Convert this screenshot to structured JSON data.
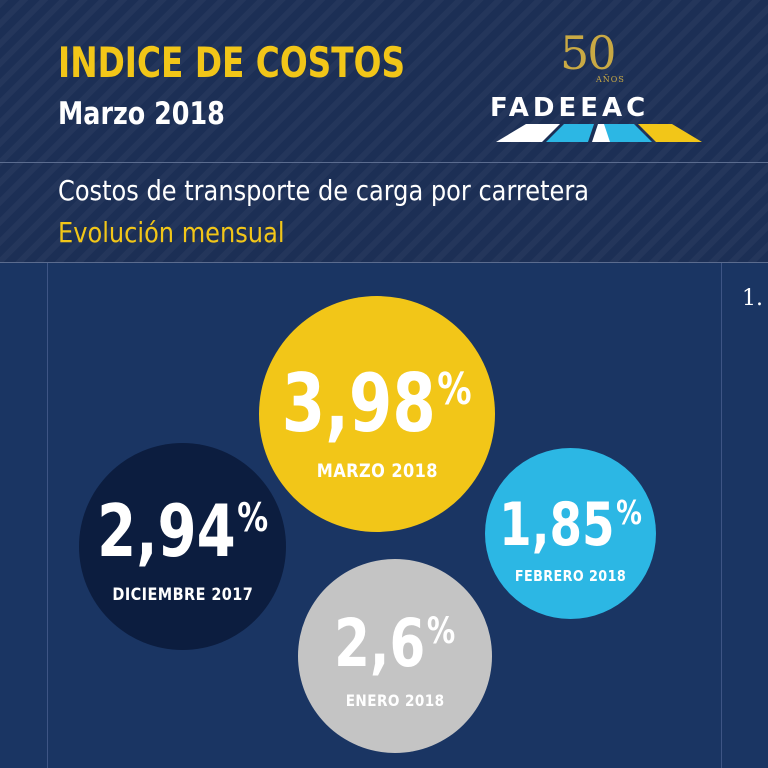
{
  "header": {
    "title": "INDICE DE COSTOS",
    "subtitle": "Marzo 2018",
    "description": "Costos de transporte de carga por carretera",
    "description_sub": "Evolución mensual"
  },
  "logo": {
    "anniversary_number": "50",
    "anniversary_label": "AÑOS",
    "name": "FADEEAC",
    "icon": "road-stripes-icon"
  },
  "side_label": "1.",
  "indices": {
    "marzo": {
      "value": "3,98",
      "unit": "%",
      "label": "MARZO 2018"
    },
    "diciembre": {
      "value": "2,94",
      "unit": "%",
      "label": "DICIEMBRE 2017"
    },
    "febrero": {
      "value": "1,85",
      "unit": "%",
      "label": "FEBRERO 2018"
    },
    "enero": {
      "value": "2,6",
      "unit": "%",
      "label": "ENERO 2018"
    }
  },
  "colors": {
    "background": "#1a3563",
    "header": "#1c2f55",
    "accent_yellow": "#f2c618",
    "circle_marzo": "#f2c618",
    "circle_diciembre": "#0c1d3f",
    "circle_febrero": "#2cb7e4",
    "circle_enero": "#c4c4c4",
    "logo_gold": "#c9a944"
  }
}
